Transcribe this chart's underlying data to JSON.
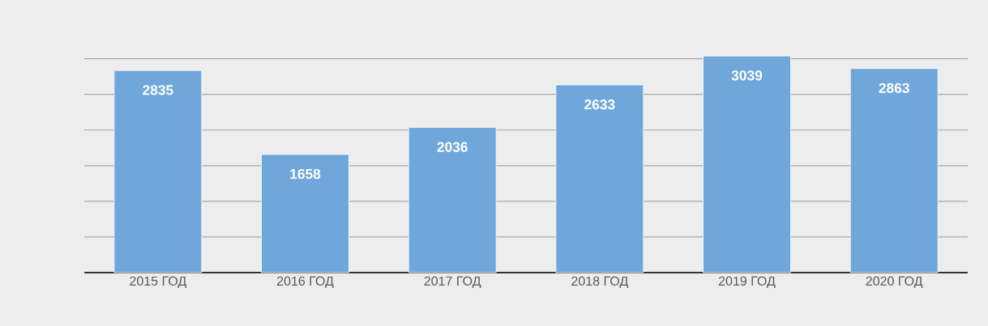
{
  "chart_data": {
    "type": "bar",
    "categories": [
      "2015 ГОД",
      "2016 ГОД",
      "2017 ГОД",
      "2018 ГОД",
      "2019 ГОД",
      "2020 ГОД"
    ],
    "values": [
      2835,
      1658,
      2036,
      2633,
      3039,
      2863
    ],
    "color": "#6fa7db",
    "grid": "y",
    "tick_labels": "x",
    "data_labels": true
  }
}
